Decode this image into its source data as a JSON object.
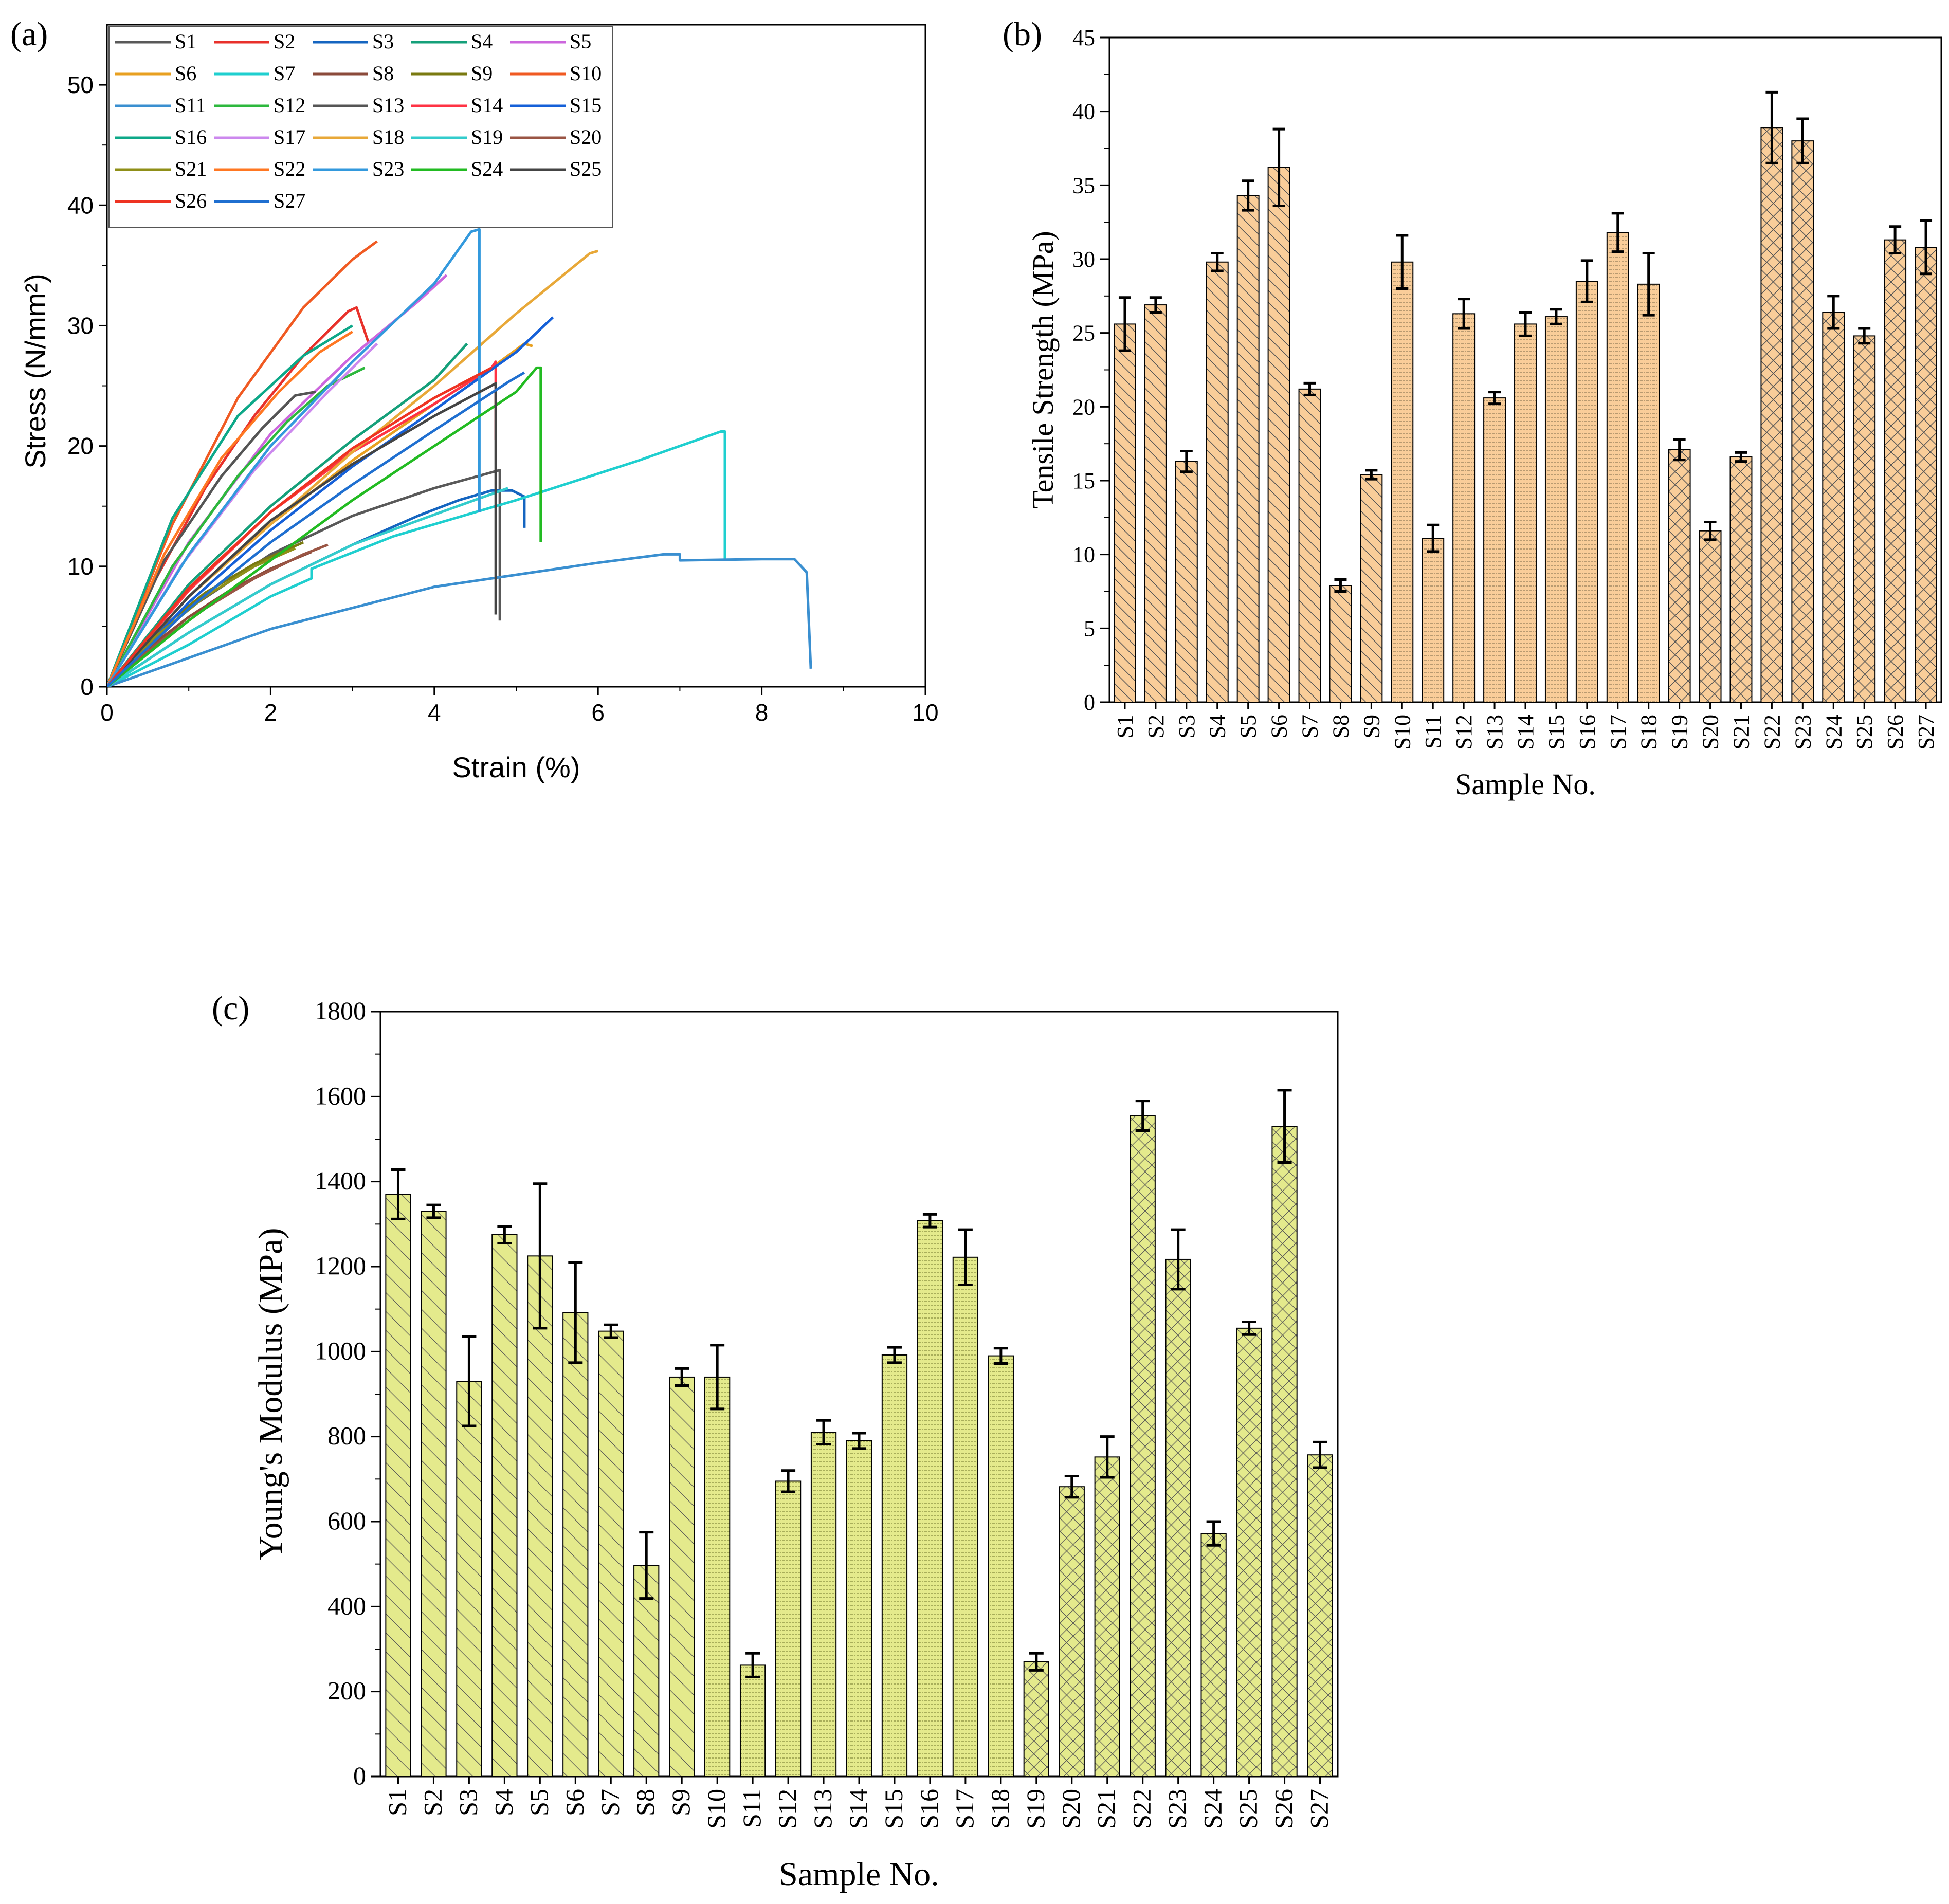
{
  "panels": {
    "a_label": "(a)",
    "b_label": "(b)",
    "c_label": "(c)"
  },
  "chart_data": [
    {
      "id": "a",
      "type": "line",
      "title": "",
      "xlabel": "Strain (%)",
      "ylabel": "Stress (N/mm²)",
      "xlim": [
        0,
        10
      ],
      "ylim": [
        0,
        55
      ],
      "xticks": [
        0,
        2,
        4,
        6,
        8,
        10
      ],
      "yticks": [
        0,
        10,
        20,
        30,
        40,
        50
      ],
      "legend_position": "top-left",
      "series": [
        {
          "name": "S1",
          "color": "#595959",
          "x": [
            0,
            1,
            2,
            3,
            4,
            4.8,
            4.8
          ],
          "y": [
            0,
            6.5,
            11,
            14.2,
            16.5,
            18,
            5.5
          ]
        },
        {
          "name": "S2",
          "color": "#e8312b",
          "x": [
            0,
            0.6,
            1.2,
            1.8,
            2.4,
            2.95,
            3.05,
            3.2
          ],
          "y": [
            0,
            9,
            16.5,
            22.5,
            27.5,
            31.2,
            31.5,
            28.5
          ]
        },
        {
          "name": "S3",
          "color": "#1565c0",
          "x": [
            0,
            1,
            2,
            3,
            3.8,
            4.3,
            4.7,
            4.95,
            5.1,
            5.1
          ],
          "y": [
            0,
            4.5,
            8.5,
            11.8,
            14.2,
            15.5,
            16.3,
            16.3,
            15.8,
            13.2
          ]
        },
        {
          "name": "S4",
          "color": "#15a07a",
          "x": [
            0,
            1,
            2,
            3,
            4,
            4.4
          ],
          "y": [
            0,
            8.5,
            15,
            20.5,
            25.5,
            28.5
          ]
        },
        {
          "name": "S5",
          "color": "#cc66dd",
          "x": [
            0,
            1,
            2,
            3,
            3.8,
            4.15
          ],
          "y": [
            0,
            12,
            21,
            27.5,
            32,
            34.2
          ]
        },
        {
          "name": "S6",
          "color": "#e8a020",
          "x": [
            0,
            1,
            2,
            3,
            4,
            4.7,
            5.1,
            5.2
          ],
          "y": [
            0,
            7.5,
            13.5,
            18.8,
            23.5,
            26.5,
            28.5,
            28.3
          ]
        },
        {
          "name": "S7",
          "color": "#1fcfcf",
          "x": [
            0,
            1,
            2,
            2.5,
            2.5,
            3.5,
            5,
            6.5,
            7.5,
            7.55,
            7.55
          ],
          "y": [
            0,
            3.5,
            7.5,
            9,
            9.8,
            12.5,
            15.5,
            18.8,
            21.2,
            21.2,
            10.5
          ]
        },
        {
          "name": "S8",
          "color": "#8b4a3a",
          "x": [
            0,
            0.5,
            1,
            1.5,
            2,
            2.5
          ],
          "y": [
            0,
            3.2,
            5.8,
            8,
            9.8,
            11.2
          ]
        },
        {
          "name": "S9",
          "color": "#7a7a10",
          "x": [
            0,
            0.6,
            1.2,
            1.8,
            2.4
          ],
          "y": [
            0,
            4.5,
            7.8,
            10.2,
            12
          ]
        },
        {
          "name": "S10",
          "color": "#f05a22",
          "x": [
            0,
            0.8,
            1.6,
            2.4,
            3.0,
            3.3
          ],
          "y": [
            0,
            13.5,
            24,
            31.5,
            35.5,
            37
          ]
        },
        {
          "name": "S11",
          "color": "#3a8fd0",
          "x": [
            0,
            2,
            4,
            6,
            6.8,
            7,
            7,
            8,
            8.4,
            8.55,
            8.6
          ],
          "y": [
            0,
            4.8,
            8.3,
            10.3,
            11,
            11,
            10.5,
            10.6,
            10.6,
            9.5,
            1.5
          ]
        },
        {
          "name": "S12",
          "color": "#2db83d",
          "x": [
            0,
            0.8,
            1.6,
            2.2,
            2.7,
            3.15
          ],
          "y": [
            0,
            10,
            17.5,
            22,
            25,
            26.5
          ]
        },
        {
          "name": "S13",
          "color": "#555555",
          "x": [
            0,
            0.7,
            1.4,
            1.9,
            2.3,
            2.55
          ],
          "y": [
            0,
            10.5,
            17.5,
            21.5,
            24.2,
            24.5
          ]
        },
        {
          "name": "S14",
          "color": "#ff3344",
          "x": [
            0,
            1,
            2,
            3,
            4,
            4.7,
            4.75,
            4.75
          ],
          "y": [
            0,
            8,
            14.5,
            19.5,
            23.5,
            26.5,
            27,
            20.5
          ]
        },
        {
          "name": "S15",
          "color": "#1560d8",
          "x": [
            0,
            1,
            2,
            3,
            4,
            5,
            5.45
          ],
          "y": [
            0,
            7,
            13,
            18.3,
            23,
            27.8,
            30.7
          ]
        },
        {
          "name": "S16",
          "color": "#0da888",
          "x": [
            0,
            0.8,
            1.6,
            2.4,
            3.0
          ],
          "y": [
            0,
            14,
            22.5,
            27.5,
            30
          ]
        },
        {
          "name": "S17",
          "color": "#cc88ee",
          "x": [
            0,
            0.9,
            1.8,
            2.7,
            3.3
          ],
          "y": [
            0,
            10,
            18,
            24.5,
            28.5
          ]
        },
        {
          "name": "S18",
          "color": "#e8a838",
          "x": [
            0,
            1,
            2,
            3,
            4,
            5,
            5.9,
            6.0
          ],
          "y": [
            0,
            7.5,
            13.5,
            19.5,
            25,
            31,
            36,
            36.2
          ]
        },
        {
          "name": "S19",
          "color": "#33cccc",
          "x": [
            0,
            1,
            2,
            3,
            4,
            4.9
          ],
          "y": [
            0,
            4.5,
            8.5,
            11.8,
            14.3,
            16.5
          ]
        },
        {
          "name": "S20",
          "color": "#9a5544",
          "x": [
            0,
            0.6,
            1.2,
            1.8,
            2.4,
            2.7
          ],
          "y": [
            0,
            3.5,
            6.5,
            9,
            11,
            11.8
          ]
        },
        {
          "name": "S21",
          "color": "#8f8f18",
          "x": [
            0,
            0.6,
            1.2,
            1.8,
            2.3
          ],
          "y": [
            0,
            4.2,
            7.5,
            10,
            11.5
          ]
        },
        {
          "name": "S22",
          "color": "#ff7722",
          "x": [
            0,
            0.7,
            1.4,
            2.1,
            2.6,
            3.0
          ],
          "y": [
            0,
            11,
            19,
            24.5,
            27.8,
            29.5
          ]
        },
        {
          "name": "S23",
          "color": "#3399dd",
          "x": [
            0,
            1,
            2,
            3,
            4,
            4.45,
            4.55,
            4.55
          ],
          "y": [
            0,
            11,
            20,
            27,
            33.5,
            37.8,
            38,
            14.5
          ]
        },
        {
          "name": "S24",
          "color": "#22bb22",
          "x": [
            0,
            1,
            2,
            3,
            4,
            5,
            5.25,
            5.3,
            5.3
          ],
          "y": [
            0,
            5.5,
            10.5,
            15.5,
            20,
            24.5,
            26.5,
            26.5,
            12
          ]
        },
        {
          "name": "S25",
          "color": "#444444",
          "x": [
            0,
            1,
            2,
            3,
            4,
            4.75,
            4.75
          ],
          "y": [
            0,
            7.5,
            13.8,
            18.5,
            22.5,
            25.2,
            6
          ]
        },
        {
          "name": "S26",
          "color": "#ee3322",
          "x": [
            0,
            1,
            2,
            3,
            4,
            4.7
          ],
          "y": [
            0,
            8.2,
            14.5,
            19.8,
            24,
            26.5
          ]
        },
        {
          "name": "S27",
          "color": "#1f6fd0",
          "x": [
            0,
            1,
            2,
            3,
            4,
            4.9,
            5.1
          ],
          "y": [
            0,
            6.5,
            12,
            16.8,
            21.3,
            25.3,
            26.1
          ]
        }
      ]
    },
    {
      "id": "b",
      "type": "bar",
      "title": "",
      "xlabel": "Sample No.",
      "ylabel": "Tensile Strength (MPa)",
      "ylim": [
        0,
        45
      ],
      "yticks": [
        0,
        5,
        10,
        15,
        20,
        25,
        30,
        35,
        40,
        45
      ],
      "bar_color": "#f9cd99",
      "categories": [
        "S1",
        "S2",
        "S3",
        "S4",
        "S5",
        "S6",
        "S7",
        "S8",
        "S9",
        "S10",
        "S11",
        "S12",
        "S13",
        "S14",
        "S15",
        "S16",
        "S17",
        "S18",
        "S19",
        "S20",
        "S21",
        "S22",
        "S23",
        "S24",
        "S25",
        "S26",
        "S27"
      ],
      "values": [
        25.6,
        26.9,
        16.3,
        29.8,
        34.3,
        36.2,
        21.2,
        7.9,
        15.4,
        29.8,
        11.1,
        26.3,
        20.6,
        25.6,
        26.1,
        28.5,
        31.8,
        28.3,
        17.1,
        11.6,
        16.6,
        38.9,
        38.0,
        26.4,
        24.8,
        31.3,
        30.8
      ],
      "errors": [
        1.8,
        0.5,
        0.7,
        0.6,
        1.0,
        2.6,
        0.4,
        0.4,
        0.3,
        1.8,
        0.9,
        1.0,
        0.4,
        0.8,
        0.5,
        1.4,
        1.3,
        2.1,
        0.7,
        0.6,
        0.3,
        2.4,
        1.5,
        1.1,
        0.5,
        0.9,
        1.8
      ],
      "patterns": [
        "diag",
        "diag",
        "diag",
        "diag",
        "diag",
        "diag",
        "diag",
        "diag",
        "diag",
        "horiz",
        "horiz",
        "horiz",
        "horiz",
        "horiz",
        "horiz",
        "horiz",
        "horiz",
        "horiz",
        "cross",
        "cross",
        "cross",
        "cross",
        "cross",
        "cross",
        "cross",
        "cross",
        "cross"
      ]
    },
    {
      "id": "c",
      "type": "bar",
      "title": "",
      "xlabel": "Sample No.",
      "ylabel": "Young's Modulus (MPa)",
      "ylim": [
        0,
        1800
      ],
      "yticks": [
        0,
        200,
        400,
        600,
        800,
        1000,
        1200,
        1400,
        1600,
        1800
      ],
      "bar_color": "#e4ea8c",
      "categories": [
        "S1",
        "S2",
        "S3",
        "S4",
        "S5",
        "S6",
        "S7",
        "S8",
        "S9",
        "S10",
        "S11",
        "S12",
        "S13",
        "S14",
        "S15",
        "S16",
        "S17",
        "S18",
        "S19",
        "S20",
        "S21",
        "S22",
        "S23",
        "S24",
        "S25",
        "S26",
        "S27"
      ],
      "values": [
        1370,
        1330,
        930,
        1275,
        1225,
        1092,
        1048,
        497,
        940,
        940,
        262,
        695,
        810,
        790,
        992,
        1308,
        1222,
        990,
        270,
        682,
        752,
        1555,
        1217,
        572,
        1055,
        1530,
        757
      ],
      "errors": [
        58,
        15,
        105,
        20,
        170,
        118,
        15,
        78,
        20,
        75,
        28,
        25,
        28,
        18,
        18,
        15,
        65,
        18,
        20,
        25,
        48,
        35,
        70,
        28,
        15,
        85,
        30
      ],
      "patterns": [
        "diag",
        "diag",
        "diag",
        "diag",
        "diag",
        "diag",
        "diag",
        "diag",
        "diag",
        "horiz",
        "horiz",
        "horiz",
        "horiz",
        "horiz",
        "horiz",
        "horiz",
        "horiz",
        "horiz",
        "cross",
        "cross",
        "cross",
        "cross",
        "cross",
        "cross",
        "cross",
        "cross",
        "cross"
      ]
    }
  ]
}
